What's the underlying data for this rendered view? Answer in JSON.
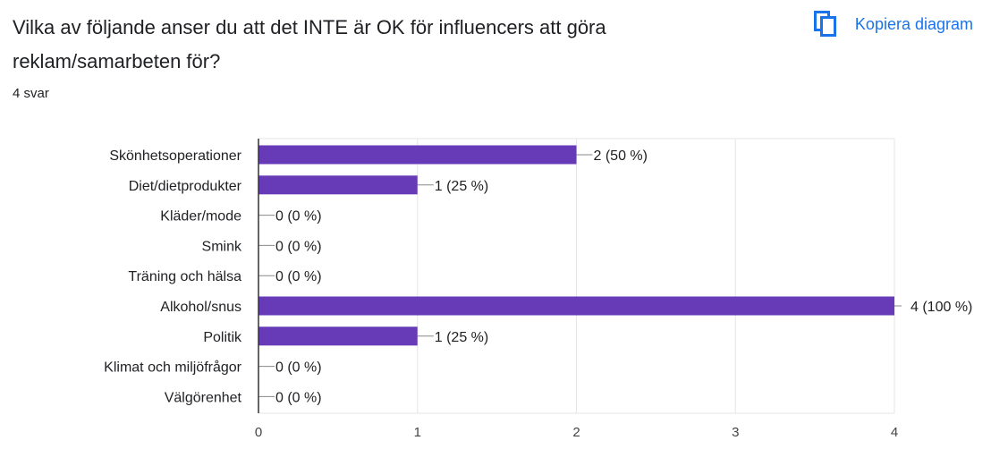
{
  "header": {
    "title": "Vilka av följande anser du att det INTE är OK för influencers att göra reklam/samarbeten för?",
    "response_count": "4 svar",
    "copy_label": "Kopiera diagram",
    "copy_icon": "copy-icon"
  },
  "colors": {
    "bar": "#673ab7",
    "accent": "#1a73e8"
  },
  "chart_data": {
    "type": "bar",
    "orientation": "horizontal",
    "title": "",
    "xlabel": "",
    "ylabel": "",
    "categories": [
      "Skönhetsoperationer",
      "Diet/dietprodukter",
      "Kläder/mode",
      "Smink",
      "Träning och hälsa",
      "Alkohol/snus",
      "Politik",
      "Klimat och miljöfrågor",
      "Välgörenhet"
    ],
    "values": [
      2,
      1,
      0,
      0,
      0,
      4,
      1,
      0,
      0
    ],
    "value_labels": [
      "2 (50 %)",
      "1 (25 %)",
      "0 (0 %)",
      "0 (0 %)",
      "0 (0 %)",
      "4 (100 %)",
      "1 (25 %)",
      "0 (0 %)",
      "0 (0 %)"
    ],
    "xlim": [
      0,
      4
    ],
    "xticks": [
      "0",
      "1",
      "2",
      "3",
      "4"
    ],
    "grid": true
  }
}
